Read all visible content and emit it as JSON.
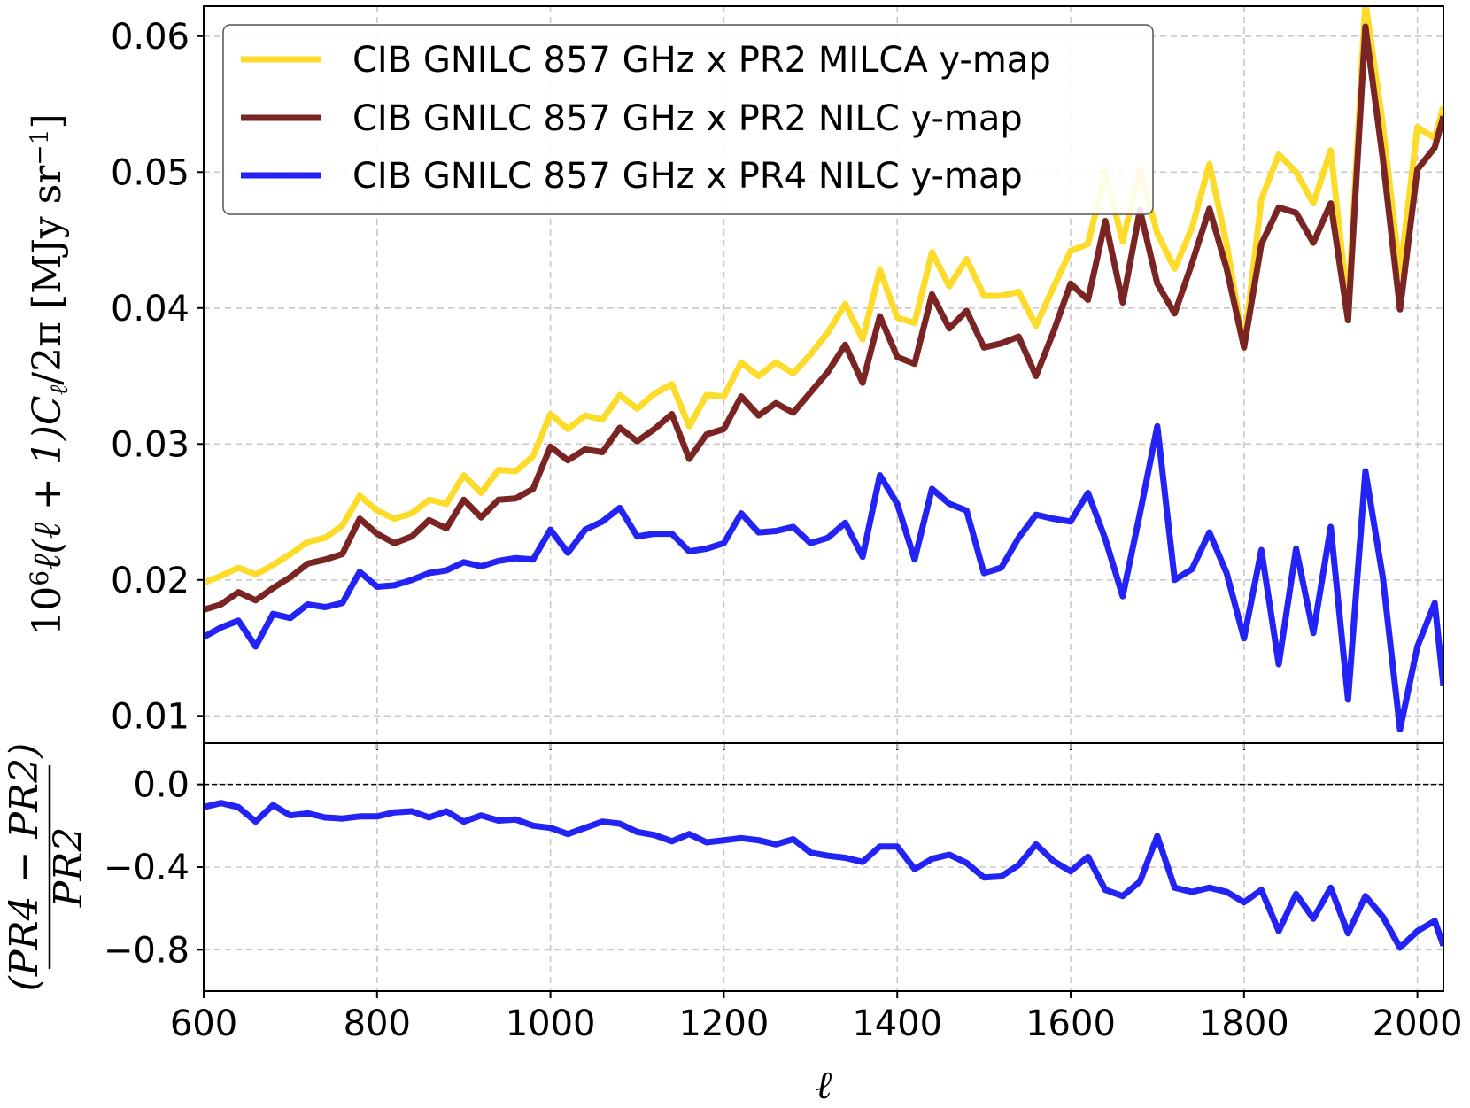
{
  "chart_data": [
    {
      "type": "line",
      "panel": "top",
      "ylabel_parts": [
        "10",
        "6",
        "ℓ(ℓ + 1)C",
        "ℓ",
        "/2π [MJy sr",
        "−1",
        "]"
      ],
      "xlim": [
        600,
        2030
      ],
      "ylim": [
        0.008,
        0.0622
      ],
      "yticks": [
        0.01,
        0.02,
        0.03,
        0.04,
        0.05,
        0.06
      ],
      "ytick_labels": [
        "0.01",
        "0.02",
        "0.03",
        "0.04",
        "0.05",
        "0.06"
      ],
      "xticks": [
        600,
        800,
        1000,
        1200,
        1400,
        1600,
        1800,
        2000
      ],
      "grid": true,
      "legend_position": "top-left",
      "x": [
        600,
        620,
        640,
        660,
        680,
        700,
        720,
        740,
        760,
        780,
        800,
        820,
        840,
        860,
        880,
        900,
        920,
        940,
        960,
        980,
        1000,
        1020,
        1040,
        1060,
        1080,
        1100,
        1120,
        1140,
        1160,
        1180,
        1200,
        1220,
        1240,
        1260,
        1280,
        1300,
        1320,
        1340,
        1360,
        1380,
        1400,
        1420,
        1440,
        1460,
        1480,
        1500,
        1520,
        1540,
        1560,
        1580,
        1600,
        1620,
        1640,
        1660,
        1680,
        1700,
        1720,
        1740,
        1760,
        1780,
        1800,
        1820,
        1840,
        1860,
        1880,
        1900,
        1920,
        1940,
        1960,
        1980,
        2000,
        2020,
        2030
      ],
      "series": [
        {
          "name": "CIB GNILC 857 GHz x PR2 MILCA y-map",
          "color": "#FDDB2A",
          "values": [
            0.0198,
            0.0203,
            0.0209,
            0.0204,
            0.0211,
            0.0219,
            0.0228,
            0.0231,
            0.024,
            0.0262,
            0.0251,
            0.0245,
            0.0249,
            0.0259,
            0.0256,
            0.0277,
            0.0264,
            0.0281,
            0.028,
            0.0291,
            0.0322,
            0.0311,
            0.0321,
            0.0318,
            0.0336,
            0.0326,
            0.0337,
            0.0344,
            0.0313,
            0.0336,
            0.0335,
            0.036,
            0.035,
            0.036,
            0.0352,
            0.0366,
            0.0382,
            0.0403,
            0.0377,
            0.0428,
            0.0393,
            0.0389,
            0.0441,
            0.0416,
            0.0436,
            0.0409,
            0.0409,
            0.0412,
            0.0387,
            0.0415,
            0.0442,
            0.0447,
            0.05,
            0.0449,
            0.0502,
            0.0455,
            0.0429,
            0.0459,
            0.0506,
            0.0447,
            0.0371,
            0.048,
            0.0513,
            0.05,
            0.0477,
            0.0516,
            0.04,
            0.0625,
            0.0535,
            0.0425,
            0.0533,
            0.0525,
            0.0548
          ]
        },
        {
          "name": "CIB GNILC 857 GHz x PR2 NILC y-map",
          "color": "#7A2424",
          "values": [
            0.0178,
            0.0182,
            0.0191,
            0.0185,
            0.0194,
            0.0202,
            0.0212,
            0.0215,
            0.0219,
            0.0245,
            0.0234,
            0.0227,
            0.0232,
            0.0244,
            0.0238,
            0.0259,
            0.0246,
            0.0259,
            0.026,
            0.0267,
            0.0298,
            0.0288,
            0.0296,
            0.0294,
            0.0312,
            0.0302,
            0.0311,
            0.0322,
            0.0289,
            0.0307,
            0.0311,
            0.0335,
            0.0321,
            0.033,
            0.0323,
            0.0338,
            0.0353,
            0.0373,
            0.0345,
            0.0394,
            0.0364,
            0.0359,
            0.041,
            0.0385,
            0.0398,
            0.0371,
            0.0374,
            0.0379,
            0.035,
            0.0382,
            0.0418,
            0.0406,
            0.0464,
            0.0404,
            0.0472,
            0.0418,
            0.0396,
            0.0433,
            0.0473,
            0.0429,
            0.0371,
            0.0447,
            0.0474,
            0.047,
            0.0448,
            0.0477,
            0.0391,
            0.0607,
            0.051,
            0.0399,
            0.0502,
            0.0518,
            0.0541
          ]
        },
        {
          "name": "CIB GNILC 857 GHz x PR4 NILC y-map",
          "color": "#2323F5",
          "values": [
            0.0158,
            0.0165,
            0.017,
            0.0151,
            0.0175,
            0.0172,
            0.0182,
            0.018,
            0.0183,
            0.0206,
            0.0195,
            0.0196,
            0.02,
            0.0205,
            0.0207,
            0.0213,
            0.021,
            0.0214,
            0.0216,
            0.0215,
            0.0237,
            0.022,
            0.0237,
            0.0243,
            0.0253,
            0.0232,
            0.0234,
            0.0234,
            0.0221,
            0.0223,
            0.0227,
            0.0249,
            0.0235,
            0.0236,
            0.0239,
            0.0227,
            0.0231,
            0.0242,
            0.0217,
            0.0277,
            0.0256,
            0.0215,
            0.0267,
            0.0256,
            0.0251,
            0.0205,
            0.0209,
            0.0231,
            0.0248,
            0.0245,
            0.0243,
            0.0264,
            0.023,
            0.0188,
            0.0249,
            0.0313,
            0.02,
            0.0208,
            0.0235,
            0.0205,
            0.0157,
            0.0222,
            0.0138,
            0.0223,
            0.0161,
            0.0239,
            0.0112,
            0.028,
            0.0202,
            0.009,
            0.0151,
            0.0183,
            0.0122
          ]
        }
      ]
    },
    {
      "type": "line",
      "panel": "bottom",
      "xlabel": "ℓ",
      "ylabel_parts": [
        "(PR4 − PR2)",
        "PR2"
      ],
      "xlim": [
        600,
        2030
      ],
      "ylim": [
        -1.0,
        0.2
      ],
      "yticks": [
        0.0,
        -0.4,
        -0.8
      ],
      "ytick_labels": [
        "0.0",
        "−0.4",
        "−0.8"
      ],
      "xticks": [
        600,
        800,
        1000,
        1200,
        1400,
        1600,
        1800,
        2000
      ],
      "xtick_labels": [
        "600",
        "800",
        "1000",
        "1200",
        "1400",
        "1600",
        "1800",
        "2000"
      ],
      "reference_line": 0.0,
      "grid": true,
      "x": [
        600,
        620,
        640,
        660,
        680,
        700,
        720,
        740,
        760,
        780,
        800,
        820,
        840,
        860,
        880,
        900,
        920,
        940,
        960,
        980,
        1000,
        1020,
        1040,
        1060,
        1080,
        1100,
        1120,
        1140,
        1160,
        1180,
        1200,
        1220,
        1240,
        1260,
        1280,
        1300,
        1320,
        1340,
        1360,
        1380,
        1400,
        1420,
        1440,
        1460,
        1480,
        1500,
        1520,
        1540,
        1560,
        1580,
        1600,
        1620,
        1640,
        1660,
        1680,
        1700,
        1720,
        1740,
        1760,
        1780,
        1800,
        1820,
        1840,
        1860,
        1880,
        1900,
        1920,
        1940,
        1960,
        1980,
        2000,
        2020,
        2030
      ],
      "series": [
        {
          "name": "(PR4 − PR2)/PR2",
          "color": "#2323F5",
          "values": [
            -0.11,
            -0.09,
            -0.11,
            -0.18,
            -0.1,
            -0.15,
            -0.14,
            -0.16,
            -0.165,
            -0.155,
            -0.155,
            -0.135,
            -0.13,
            -0.16,
            -0.13,
            -0.18,
            -0.15,
            -0.175,
            -0.17,
            -0.2,
            -0.21,
            -0.24,
            -0.21,
            -0.18,
            -0.19,
            -0.23,
            -0.245,
            -0.275,
            -0.24,
            -0.28,
            -0.27,
            -0.26,
            -0.27,
            -0.29,
            -0.265,
            -0.33,
            -0.345,
            -0.355,
            -0.375,
            -0.3,
            -0.3,
            -0.41,
            -0.36,
            -0.34,
            -0.38,
            -0.45,
            -0.445,
            -0.39,
            -0.29,
            -0.37,
            -0.42,
            -0.35,
            -0.51,
            -0.54,
            -0.47,
            -0.25,
            -0.5,
            -0.52,
            -0.5,
            -0.52,
            -0.57,
            -0.51,
            -0.71,
            -0.53,
            -0.65,
            -0.5,
            -0.72,
            -0.54,
            -0.64,
            -0.79,
            -0.71,
            -0.66,
            -0.78
          ]
        }
      ]
    }
  ]
}
